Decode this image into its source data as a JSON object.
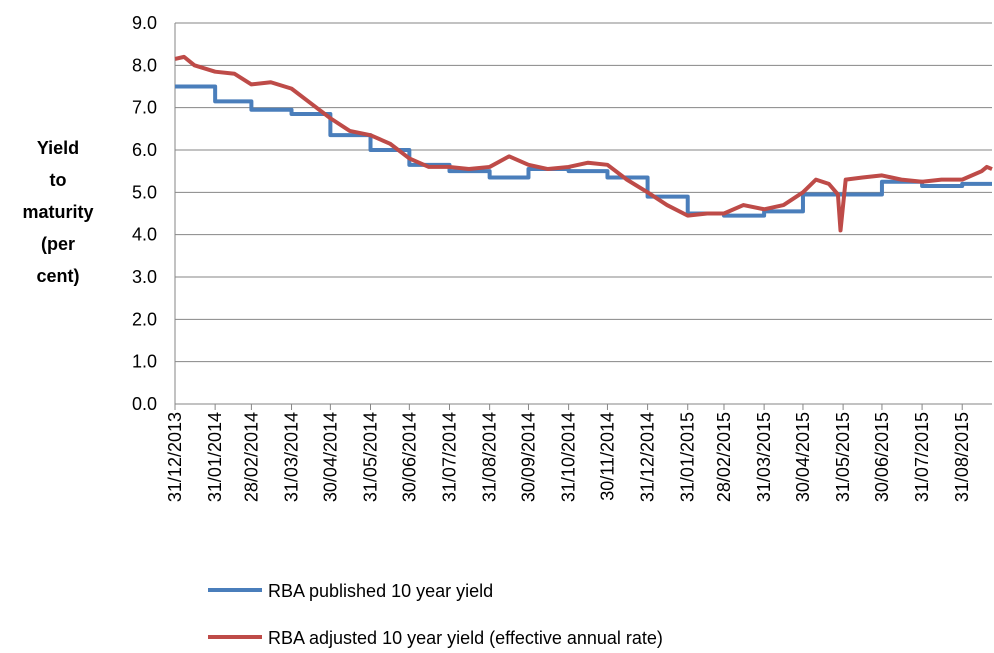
{
  "chart_data": {
    "type": "line",
    "ylabel": [
      "Yield",
      "to",
      "maturity",
      "(per",
      "cent)"
    ],
    "ylim": [
      0,
      9
    ],
    "yticks": [
      {
        "value": 0,
        "label": "0.0"
      },
      {
        "value": 1,
        "label": "1.0"
      },
      {
        "value": 2,
        "label": "2.0"
      },
      {
        "value": 3,
        "label": "3.0"
      },
      {
        "value": 4,
        "label": "4.0"
      },
      {
        "value": 5,
        "label": "5.0"
      },
      {
        "value": 6,
        "label": "6.0"
      },
      {
        "value": 7,
        "label": "7.0"
      },
      {
        "value": 8,
        "label": "8.0"
      },
      {
        "value": 9,
        "label": "9.0"
      }
    ],
    "xlim": [
      "31/12/2013",
      "23/09/2015"
    ],
    "xticks": [
      "31/12/2013",
      "31/01/2014",
      "28/02/2014",
      "31/03/2014",
      "30/04/2014",
      "31/05/2014",
      "30/06/2014",
      "31/07/2014",
      "31/08/2014",
      "30/09/2014",
      "31/10/2014",
      "30/11/2014",
      "31/12/2014",
      "31/01/2015",
      "28/02/2015",
      "31/03/2015",
      "30/04/2015",
      "31/05/2015",
      "30/06/2015",
      "31/07/2015",
      "31/08/2015"
    ],
    "grid": true,
    "legend": "bottom",
    "series": [
      {
        "name": "RBA published 10 year yield",
        "color": "#4a7ebb",
        "step": true,
        "x": [
          "31/12/2013",
          "31/01/2014",
          "28/02/2014",
          "31/03/2014",
          "30/04/2014",
          "31/05/2014",
          "30/06/2014",
          "31/07/2014",
          "31/08/2014",
          "30/09/2014",
          "31/10/2014",
          "30/11/2014",
          "31/12/2014",
          "31/01/2015",
          "28/02/2015",
          "31/03/2015",
          "30/04/2015",
          "30/06/2015",
          "31/07/2015",
          "31/08/2015"
        ],
        "values": [
          7.5,
          7.15,
          6.95,
          6.85,
          6.35,
          6.0,
          5.65,
          5.5,
          5.35,
          5.55,
          5.5,
          5.35,
          4.9,
          4.5,
          4.45,
          4.55,
          4.95,
          5.25,
          5.15,
          5.2
        ]
      },
      {
        "name": "RBA adjusted 10 year yield (effective annual rate)",
        "color": "#be4b48",
        "step": false,
        "x": [
          "31/12/2013",
          "07/01/2014",
          "15/01/2014",
          "31/01/2014",
          "15/02/2014",
          "28/02/2014",
          "15/03/2014",
          "31/03/2014",
          "15/04/2014",
          "30/04/2014",
          "15/05/2014",
          "31/05/2014",
          "15/06/2014",
          "30/06/2014",
          "15/07/2014",
          "31/07/2014",
          "15/08/2014",
          "31/08/2014",
          "15/09/2014",
          "30/09/2014",
          "15/10/2014",
          "31/10/2014",
          "15/11/2014",
          "30/11/2014",
          "15/12/2014",
          "31/12/2014",
          "15/01/2015",
          "31/01/2015",
          "15/02/2015",
          "28/02/2015",
          "15/03/2015",
          "31/03/2015",
          "15/04/2015",
          "30/04/2015",
          "10/05/2015",
          "20/05/2015",
          "27/05/2015",
          "29/05/2015",
          "02/06/2015",
          "15/06/2015",
          "30/06/2015",
          "15/07/2015",
          "31/07/2015",
          "15/08/2015",
          "31/08/2015",
          "15/09/2015",
          "19/09/2015",
          "23/09/2015"
        ],
        "values": [
          8.15,
          8.2,
          8.0,
          7.85,
          7.8,
          7.55,
          7.6,
          7.45,
          7.1,
          6.75,
          6.45,
          6.35,
          6.15,
          5.8,
          5.6,
          5.6,
          5.55,
          5.6,
          5.85,
          5.65,
          5.55,
          5.6,
          5.7,
          5.65,
          5.3,
          5.0,
          4.7,
          4.45,
          4.5,
          4.5,
          4.7,
          4.6,
          4.7,
          5.0,
          5.3,
          5.2,
          4.95,
          4.1,
          5.3,
          5.35,
          5.4,
          5.3,
          5.25,
          5.3,
          5.3,
          5.5,
          5.6,
          5.55
        ]
      }
    ]
  }
}
